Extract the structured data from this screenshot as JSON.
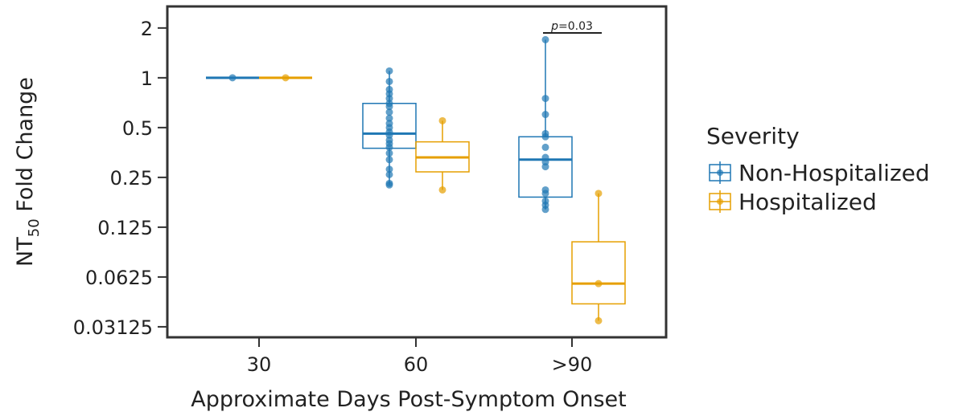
{
  "chart_data": {
    "type": "box",
    "xlabel": "Approximate Days Post-Symptom Onset",
    "ylabel": "NT",
    "ylabel_subscript": "50",
    "ylabel_suffix": " Fold Change",
    "yscale": "log2",
    "ylim": [
      0.027,
      2.7
    ],
    "y_ticks": [
      2,
      1,
      0.5,
      0.25,
      0.125,
      0.0625,
      0.03125
    ],
    "y_tick_labels": [
      "2",
      "1",
      "0.5",
      "0.25",
      "0.125",
      "0.0625",
      "0.03125"
    ],
    "categories": [
      "30",
      "60",
      ">90"
    ],
    "legend": {
      "title": "Severity",
      "position": "right"
    },
    "series": [
      {
        "name": "Non-Hospitalized",
        "color": "#1f77b4",
        "boxes": [
          {
            "category": "30",
            "min": 1.0,
            "q1": 1.0,
            "median": 1.0,
            "q3": 1.0,
            "max": 1.0
          },
          {
            "category": "60",
            "min": 0.225,
            "q1": 0.375,
            "median": 0.46,
            "q3": 0.7,
            "max": 1.1
          },
          {
            "category": ">90",
            "min": 0.16,
            "q1": 0.19,
            "median": 0.32,
            "q3": 0.44,
            "max": 1.7
          }
        ],
        "points": [
          {
            "category": "30",
            "values": [
              1.0
            ]
          },
          {
            "category": "60",
            "values": [
              0.225,
              0.23,
              0.26,
              0.28,
              0.32,
              0.35,
              0.38,
              0.4,
              0.42,
              0.45,
              0.47,
              0.5,
              0.53,
              0.57,
              0.62,
              0.67,
              0.7,
              0.75,
              0.8,
              0.85,
              0.95,
              1.1
            ]
          },
          {
            "category": ">90",
            "values": [
              0.16,
              0.17,
              0.18,
              0.2,
              0.21,
              0.29,
              0.31,
              0.33,
              0.38,
              0.44,
              0.46,
              0.6,
              0.75,
              1.7
            ]
          }
        ]
      },
      {
        "name": "Hospitalized",
        "color": "#e69f00",
        "boxes": [
          {
            "category": "30",
            "min": 1.0,
            "q1": 1.0,
            "median": 1.0,
            "q3": 1.0,
            "max": 1.0
          },
          {
            "category": "60",
            "min": 0.21,
            "q1": 0.27,
            "median": 0.33,
            "q3": 0.41,
            "max": 0.55
          },
          {
            "category": ">90",
            "min": 0.034,
            "q1": 0.043,
            "median": 0.057,
            "q3": 0.102,
            "max": 0.2
          }
        ],
        "points": [
          {
            "category": "30",
            "values": [
              1.0
            ]
          },
          {
            "category": "60",
            "values": [
              0.21,
              0.55
            ]
          },
          {
            "category": ">90",
            "values": [
              0.034,
              0.057,
              0.2
            ]
          }
        ]
      }
    ],
    "annotations": [
      {
        "text_italic": "p",
        "text": "=0.03",
        "category": ">90"
      }
    ]
  }
}
